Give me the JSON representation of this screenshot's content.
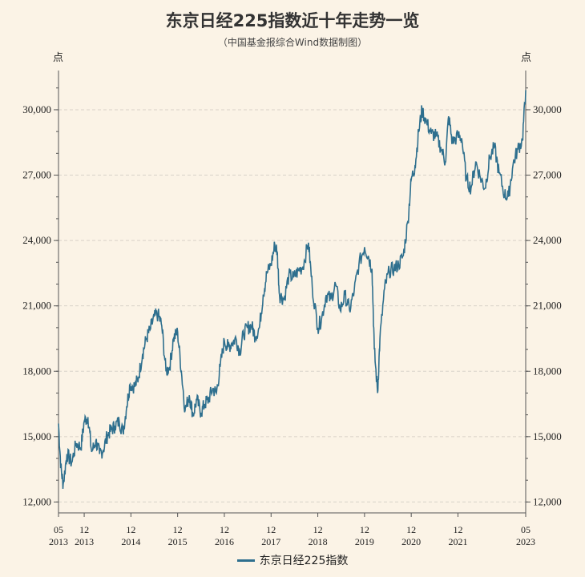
{
  "title": "东京日经225指数近十年走势一览",
  "subtitle": "（中国基金报综合Wind数据制图）",
  "colors": {
    "line": "#2e6f8e",
    "axis": "#555555",
    "grid": "#d8d2c8",
    "background": "#fbf3e6"
  },
  "chart_data": {
    "type": "line",
    "title": "东京日经225指数近十年走势一览",
    "subtitle": "（中国基金报综合Wind数据制图）",
    "y_unit_left": "点",
    "y_unit_right": "点",
    "ylim": [
      11500,
      31800
    ],
    "yticks": [
      12000,
      15000,
      18000,
      21000,
      24000,
      27000,
      30000
    ],
    "ytick_labels": [
      "12,000",
      "15,000",
      "18,000",
      "21,000",
      "24,000",
      "27,000",
      "30,000"
    ],
    "grid": "horizontal-dashed",
    "x_ticks": [
      {
        "date": "2013.37",
        "top": "05",
        "bottom": "2013"
      },
      {
        "date": "2013.92",
        "top": "12",
        "bottom": "2013"
      },
      {
        "date": "2014.92",
        "top": "12",
        "bottom": "2014"
      },
      {
        "date": "2015.92",
        "top": "12",
        "bottom": "2015"
      },
      {
        "date": "2016.92",
        "top": "12",
        "bottom": "2016"
      },
      {
        "date": "2017.92",
        "top": "12",
        "bottom": "2017"
      },
      {
        "date": "2018.92",
        "top": "12",
        "bottom": "2018"
      },
      {
        "date": "2019.92",
        "top": "12",
        "bottom": "2019"
      },
      {
        "date": "2020.92",
        "top": "12",
        "bottom": "2020"
      },
      {
        "date": "2021.92",
        "top": "12",
        "bottom": "2021"
      },
      {
        "date": "2023.37",
        "top": "05",
        "bottom": "2023"
      }
    ],
    "legend": "bottom-center",
    "series": [
      {
        "name": "东京日经225指数",
        "x": [
          2013.37,
          2013.42,
          2013.47,
          2013.55,
          2013.65,
          2013.75,
          2013.85,
          2013.92,
          2014.0,
          2014.08,
          2014.17,
          2014.25,
          2014.33,
          2014.42,
          2014.5,
          2014.58,
          2014.67,
          2014.75,
          2014.83,
          2014.9,
          2015.0,
          2015.08,
          2015.17,
          2015.25,
          2015.33,
          2015.42,
          2015.5,
          2015.58,
          2015.67,
          2015.75,
          2015.83,
          2015.92,
          2016.0,
          2016.08,
          2016.17,
          2016.25,
          2016.33,
          2016.42,
          2016.5,
          2016.58,
          2016.67,
          2016.75,
          2016.83,
          2016.92,
          2017.0,
          2017.08,
          2017.17,
          2017.25,
          2017.33,
          2017.42,
          2017.5,
          2017.58,
          2017.67,
          2017.75,
          2017.83,
          2017.92,
          2018.0,
          2018.05,
          2018.1,
          2018.2,
          2018.3,
          2018.4,
          2018.5,
          2018.6,
          2018.72,
          2018.8,
          2018.92,
          2019.0,
          2019.1,
          2019.2,
          2019.3,
          2019.4,
          2019.5,
          2019.6,
          2019.7,
          2019.8,
          2019.92,
          2020.0,
          2020.08,
          2020.13,
          2020.2,
          2020.25,
          2020.35,
          2020.45,
          2020.55,
          2020.65,
          2020.75,
          2020.85,
          2020.92,
          2021.0,
          2021.08,
          2021.15,
          2021.25,
          2021.35,
          2021.45,
          2021.55,
          2021.65,
          2021.72,
          2021.8,
          2021.92,
          2022.0,
          2022.1,
          2022.2,
          2022.3,
          2022.4,
          2022.5,
          2022.6,
          2022.7,
          2022.8,
          2022.92,
          2023.0,
          2023.1,
          2023.2,
          2023.3,
          2023.37
        ],
        "y": [
          15600,
          13600,
          12800,
          14200,
          13800,
          14700,
          14500,
          15700,
          15900,
          14300,
          14800,
          14200,
          14400,
          15100,
          15300,
          15500,
          15700,
          15200,
          16400,
          17400,
          17300,
          17700,
          18800,
          19500,
          19900,
          20500,
          20600,
          20100,
          18000,
          18200,
          19500,
          19800,
          18000,
          16200,
          16900,
          16000,
          16700,
          16100,
          16500,
          16700,
          17200,
          17000,
          18200,
          19400,
          19100,
          19300,
          19500,
          18900,
          19700,
          20000,
          20100,
          19600,
          20000,
          21500,
          22500,
          22900,
          23800,
          23500,
          21500,
          21300,
          22400,
          22300,
          22600,
          22800,
          23900,
          21900,
          20000,
          20400,
          21500,
          21300,
          22000,
          20800,
          21500,
          20800,
          21700,
          22900,
          23700,
          23300,
          22700,
          19000,
          17000,
          19500,
          21800,
          22600,
          22700,
          22900,
          23300,
          24900,
          26800,
          27400,
          29000,
          30000,
          29400,
          28900,
          28800,
          28300,
          27600,
          29700,
          28500,
          28800,
          28700,
          26800,
          26400,
          27600,
          26900,
          26400,
          27800,
          28300,
          27100,
          26100,
          26000,
          27500,
          28200,
          28600,
          30900
        ]
      }
    ]
  },
  "legend_label": "东京日经225指数"
}
